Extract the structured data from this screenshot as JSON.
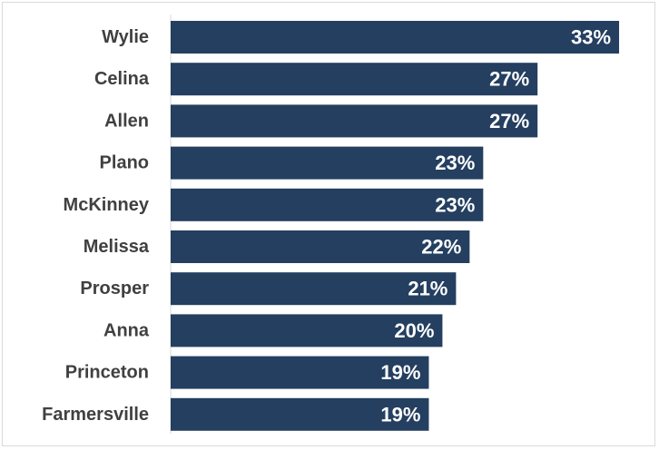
{
  "chart_data": {
    "type": "bar",
    "orientation": "horizontal",
    "categories": [
      "Wylie",
      "Celina",
      "Allen",
      "Plano",
      "McKinney",
      "Melissa",
      "Prosper",
      "Anna",
      "Princeton",
      "Farmersville"
    ],
    "values": [
      33,
      27,
      27,
      23,
      23,
      22,
      21,
      20,
      19,
      19
    ],
    "data_labels": [
      "33%",
      "27%",
      "27%",
      "23%",
      "23%",
      "22%",
      "21%",
      "20%",
      "19%",
      "19%"
    ],
    "value_unit": "%",
    "xlim": [
      0,
      34
    ],
    "grid": false,
    "legend": "none",
    "bar_color": "#243f60"
  }
}
